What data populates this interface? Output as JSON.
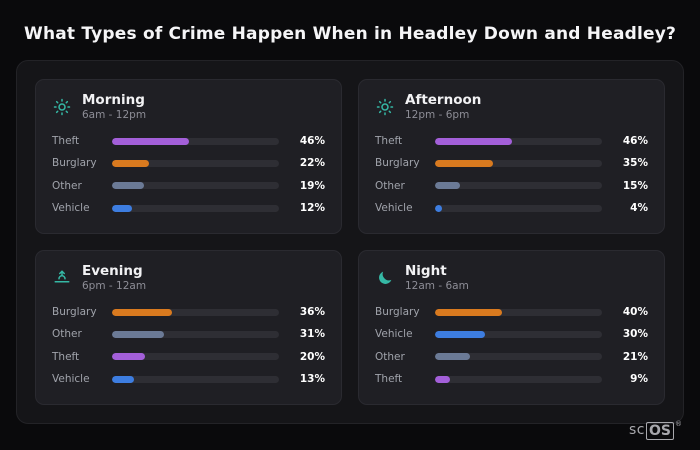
{
  "page": {
    "title": "What Types of Crime Happen When in Headley Down and Headley?"
  },
  "colors": {
    "theft": "#a35fd9",
    "burglary": "#d97a1f",
    "other": "#6b7a96",
    "vehicle": "#3d7de0",
    "icon": "#35b8a5",
    "track": "#2e2e34"
  },
  "chart_data": [
    {
      "type": "bar",
      "orientation": "horizontal",
      "title": "Morning",
      "subtitle": "6am - 12pm",
      "icon": "sun-icon",
      "xlim": [
        0,
        100
      ],
      "unit": "%",
      "categories": [
        "Theft",
        "Burglary",
        "Other",
        "Vehicle"
      ],
      "values": [
        46,
        22,
        19,
        12
      ],
      "rows": [
        {
          "label": "Theft",
          "value": 46,
          "pct": "46%",
          "color_key": "theft"
        },
        {
          "label": "Burglary",
          "value": 22,
          "pct": "22%",
          "color_key": "burglary"
        },
        {
          "label": "Other",
          "value": 19,
          "pct": "19%",
          "color_key": "other"
        },
        {
          "label": "Vehicle",
          "value": 12,
          "pct": "12%",
          "color_key": "vehicle"
        }
      ]
    },
    {
      "type": "bar",
      "orientation": "horizontal",
      "title": "Afternoon",
      "subtitle": "12pm - 6pm",
      "icon": "sun-icon",
      "xlim": [
        0,
        100
      ],
      "unit": "%",
      "categories": [
        "Theft",
        "Burglary",
        "Other",
        "Vehicle"
      ],
      "values": [
        46,
        35,
        15,
        4
      ],
      "rows": [
        {
          "label": "Theft",
          "value": 46,
          "pct": "46%",
          "color_key": "theft"
        },
        {
          "label": "Burglary",
          "value": 35,
          "pct": "35%",
          "color_key": "burglary"
        },
        {
          "label": "Other",
          "value": 15,
          "pct": "15%",
          "color_key": "other"
        },
        {
          "label": "Vehicle",
          "value": 4,
          "pct": "4%",
          "color_key": "vehicle"
        }
      ]
    },
    {
      "type": "bar",
      "orientation": "horizontal",
      "title": "Evening",
      "subtitle": "6pm - 12am",
      "icon": "sunset-icon",
      "xlim": [
        0,
        100
      ],
      "unit": "%",
      "categories": [
        "Burglary",
        "Other",
        "Theft",
        "Vehicle"
      ],
      "values": [
        36,
        31,
        20,
        13
      ],
      "rows": [
        {
          "label": "Burglary",
          "value": 36,
          "pct": "36%",
          "color_key": "burglary"
        },
        {
          "label": "Other",
          "value": 31,
          "pct": "31%",
          "color_key": "other"
        },
        {
          "label": "Theft",
          "value": 20,
          "pct": "20%",
          "color_key": "theft"
        },
        {
          "label": "Vehicle",
          "value": 13,
          "pct": "13%",
          "color_key": "vehicle"
        }
      ]
    },
    {
      "type": "bar",
      "orientation": "horizontal",
      "title": "Night",
      "subtitle": "12am - 6am",
      "icon": "moon-icon",
      "xlim": [
        0,
        100
      ],
      "unit": "%",
      "categories": [
        "Burglary",
        "Vehicle",
        "Other",
        "Theft"
      ],
      "values": [
        40,
        30,
        21,
        9
      ],
      "rows": [
        {
          "label": "Burglary",
          "value": 40,
          "pct": "40%",
          "color_key": "burglary"
        },
        {
          "label": "Vehicle",
          "value": 30,
          "pct": "30%",
          "color_key": "vehicle"
        },
        {
          "label": "Other",
          "value": 21,
          "pct": "21%",
          "color_key": "other"
        },
        {
          "label": "Theft",
          "value": 9,
          "pct": "9%",
          "color_key": "theft"
        }
      ]
    }
  ],
  "footer": {
    "brand_left": "sc",
    "brand_right": "OS",
    "registered": "®"
  }
}
